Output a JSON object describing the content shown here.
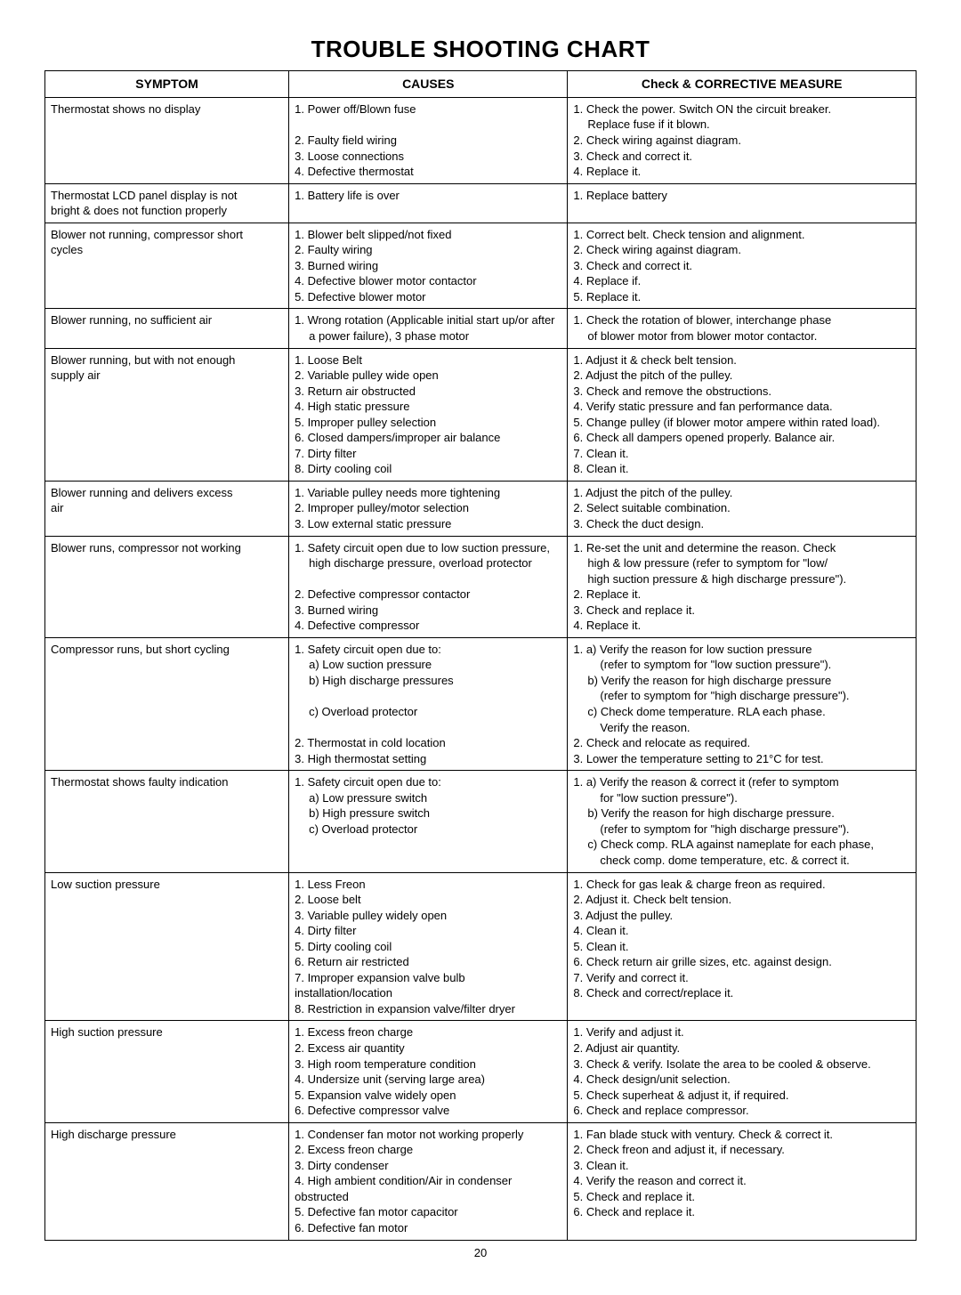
{
  "title": "TROUBLE SHOOTING CHART",
  "headers": {
    "symptom": "SYMPTOM",
    "causes": "CAUSES",
    "check": "Check & CORRECTIVE MEASURE"
  },
  "page_number": "20",
  "rows": [
    {
      "symptom": [
        "Thermostat shows no display"
      ],
      "causes": [
        "1. Power off/Blown fuse",
        "",
        "2. Faulty field wiring",
        "3. Loose connections",
        "4. Defective thermostat"
      ],
      "check": [
        "1. Check the power. Switch ON  the circuit breaker.",
        "    Replace fuse if it blown.",
        "2. Check wiring against diagram.",
        "3. Check and correct it.",
        "4. Replace it."
      ]
    },
    {
      "symptom": [
        "Thermostat LCD panel display is not",
        "bright & does not function properly"
      ],
      "causes": [
        "1. Battery life is over"
      ],
      "check": [
        "1. Replace  battery"
      ]
    },
    {
      "symptom": [
        "Blower not running, compressor short",
        "cycles"
      ],
      "causes": [
        "1. Blower belt slipped/not fixed",
        "2. Faulty wiring",
        "3. Burned wiring",
        "4. Defective blower motor contactor",
        "5. Defective blower motor"
      ],
      "check": [
        "1. Correct belt. Check tension and alignment.",
        "2. Check wiring against diagram.",
        "3. Check and correct it.",
        "4. Replace if.",
        "5. Replace it."
      ]
    },
    {
      "symptom": [
        "Blower running, no sufficient air"
      ],
      "causes": [
        "1. Wrong rotation (Applicable initial start up/or after",
        "    a power failure), 3 phase motor"
      ],
      "check": [
        "1. Check the rotation of blower, interchange phase",
        "    of blower motor from blower motor contactor."
      ]
    },
    {
      "symptom": [
        "Blower running, but with not enough",
        "supply air"
      ],
      "causes": [
        "1. Loose Belt",
        "2. Variable pulley wide open",
        "3. Return air obstructed",
        "4. High static pressure",
        "5. Improper pulley selection",
        "6. Closed dampers/improper air balance",
        "7. Dirty filter",
        "8. Dirty cooling coil"
      ],
      "check": [
        "1. Adjust it & check belt tension.",
        "2. Adjust the pitch of the pulley.",
        "3. Check and remove the obstructions.",
        "4. Verify static pressure and fan performance data.",
        "5. Change pulley (if blower motor ampere within rated load).",
        "6. Check all dampers opened properly. Balance air.",
        "7. Clean it.",
        "8. Clean it."
      ]
    },
    {
      "symptom": [
        "Blower running and delivers excess",
        "air"
      ],
      "causes": [
        "1. Variable pulley needs more tightening",
        "2. Improper pulley/motor selection",
        "3. Low external static pressure"
      ],
      "check": [
        "1. Adjust the pitch of the pulley.",
        "2. Select suitable combination.",
        "3. Check the duct design."
      ]
    },
    {
      "symptom": [
        "Blower runs, compressor not working"
      ],
      "causes": [
        "1. Safety circuit open due to low suction pressure,",
        "    high discharge pressure, overload protector",
        "",
        "2. Defective compressor contactor",
        "3. Burned wiring",
        "4. Defective compressor"
      ],
      "check": [
        "1. Re-set the unit and determine the reason. Check",
        "    high & low pressure (refer to symptom for \"low/",
        "    high suction pressure & high discharge pressure\").",
        "2. Replace it.",
        "3. Check and replace it.",
        "4. Replace it."
      ]
    },
    {
      "symptom": [
        "Compressor runs, but short cycling"
      ],
      "causes": [
        "1. Safety circuit open due to:",
        "    a) Low suction pressure",
        "    b) High discharge pressures",
        "",
        "    c) Overload protector",
        "",
        "2. Thermostat in cold location",
        "3. High thermostat  setting"
      ],
      "check": [
        "1. a) Verify the reason for low suction pressure",
        "       (refer to symptom for \"low suction pressure\").",
        "    b) Verify the reason for high discharge pressure",
        "       (refer to symptom for \"high discharge pressure\").",
        "    c) Check dome temperature. RLA each phase.",
        "       Verify the reason.",
        "2. Check and relocate as required.",
        "3. Lower the temperature setting to 21°C for test."
      ]
    },
    {
      "symptom": [
        "Thermostat shows faulty indication"
      ],
      "causes": [
        "1. Safety circuit open due to:",
        "    a) Low pressure switch",
        "    b) High pressure switch",
        "    c) Overload protector"
      ],
      "check": [
        "1. a) Verify the reason & correct it (refer to symptom",
        "       for \"low suction pressure\").",
        "    b) Verify the reason for high discharge pressure.",
        "       (refer to symptom for \"high discharge pressure\").",
        "    c) Check comp. RLA against nameplate for each phase,",
        "       check comp. dome temperature, etc. & correct it."
      ]
    },
    {
      "symptom": [
        "Low suction pressure"
      ],
      "causes": [
        "1. Less Freon",
        "2. Loose belt",
        "3. Variable pulley widely open",
        "4. Dirty filter",
        "5. Dirty cooling coil",
        "6. Return air restricted",
        "7. Improper expansion valve bulb installation/location",
        "8. Restriction in expansion valve/filter dryer"
      ],
      "check": [
        "1. Check for gas leak & charge freon as required.",
        "2. Adjust it. Check belt tension.",
        "3. Adjust the pulley.",
        "4. Clean it.",
        "5. Clean it.",
        "6. Check return air grille sizes, etc. against design.",
        "7. Verify and correct it.",
        "8. Check and correct/replace it."
      ]
    },
    {
      "symptom": [
        "High suction pressure"
      ],
      "causes": [
        "1. Excess freon charge",
        "2. Excess air quantity",
        "3. High room temperature condition",
        "4. Undersize unit (serving large area)",
        "5. Expansion valve widely open",
        "6. Defective  compressor valve"
      ],
      "check": [
        "1. Verify and adjust it.",
        "2. Adjust air quantity.",
        "3. Check & verify. Isolate the area to be cooled & observe.",
        "4. Check design/unit selection.",
        "5. Check superheat & adjust it, if required.",
        "6. Check and replace compressor."
      ]
    },
    {
      "symptom": [
        "High discharge pressure"
      ],
      "causes": [
        "1. Condenser fan motor not working properly",
        "2. Excess freon charge",
        "3. Dirty condenser",
        "4. High ambient condition/Air in condenser obstructed",
        "5. Defective fan motor capacitor",
        "6. Defective fan motor"
      ],
      "check": [
        "1. Fan blade stuck with ventury. Check & correct it.",
        "2. Check freon and adjust it, if necessary.",
        "3. Clean it.",
        "4. Verify the reason and correct it.",
        "5. Check and replace it.",
        "6. Check and replace it."
      ]
    }
  ]
}
